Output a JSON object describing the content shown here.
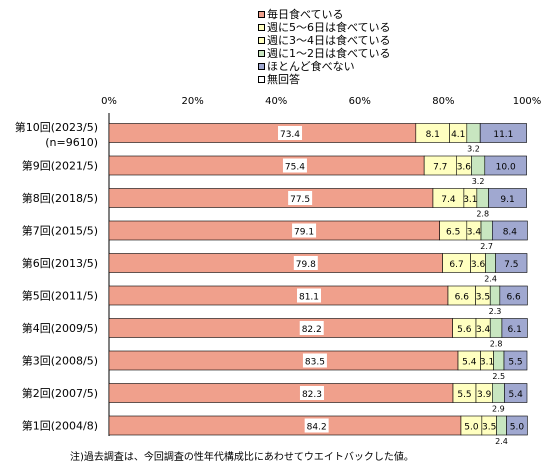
{
  "chart_data": {
    "type": "bar",
    "stacked": true,
    "orientation": "horizontal",
    "xlim": [
      0,
      100
    ],
    "x_ticks": [
      "0%",
      "20%",
      "40%",
      "60%",
      "80%",
      "100%"
    ],
    "legend_position": "top-right",
    "grid": false,
    "categories": [
      {
        "line1": "第10回(2023/5)",
        "line2": "(n=9610)"
      },
      {
        "line1": "第9回(2021/5)",
        "line2": ""
      },
      {
        "line1": "第8回(2018/5)",
        "line2": ""
      },
      {
        "line1": "第7回(2015/5)",
        "line2": ""
      },
      {
        "line1": "第6回(2013/5)",
        "line2": ""
      },
      {
        "line1": "第5回(2011/5)",
        "line2": ""
      },
      {
        "line1": "第4回(2009/5)",
        "line2": ""
      },
      {
        "line1": "第3回(2008/5)",
        "line2": ""
      },
      {
        "line1": "第2回(2007/5)",
        "line2": ""
      },
      {
        "line1": "第1回(2004/8)",
        "line2": ""
      }
    ],
    "series": [
      {
        "name": "毎日食べている",
        "color": "#f0a08c",
        "values": [
          73.4,
          75.4,
          77.5,
          79.1,
          79.8,
          81.1,
          82.2,
          83.5,
          82.3,
          84.2
        ]
      },
      {
        "name": "週に5～6日は食べている",
        "color": "#ffffc0",
        "values": [
          8.1,
          7.7,
          7.4,
          6.5,
          6.7,
          6.6,
          5.6,
          5.4,
          5.5,
          5.0
        ]
      },
      {
        "name": "週に3～4日は食べている",
        "color": "#ffffc0",
        "values": [
          4.1,
          3.6,
          3.1,
          3.4,
          3.6,
          3.5,
          3.4,
          3.1,
          3.9,
          3.5
        ]
      },
      {
        "name": "週に1～2日は食べている",
        "color": "#c8e6c0",
        "values": [
          3.2,
          3.2,
          2.8,
          2.7,
          2.4,
          2.3,
          2.8,
          2.5,
          2.9,
          2.4
        ]
      },
      {
        "name": "ほとんど食べない",
        "color": "#a0a8d0",
        "values": [
          11.1,
          10.0,
          9.1,
          8.4,
          7.5,
          6.6,
          6.1,
          5.5,
          5.4,
          5.0
        ]
      },
      {
        "name": "無回答",
        "color": "#ffffff",
        "values": [
          0,
          0,
          0,
          0,
          0,
          0,
          0,
          0,
          0,
          0
        ]
      }
    ]
  },
  "note": "注)過去調査は、今回調査の性年代構成比にあわせてウエイトバックした値。"
}
